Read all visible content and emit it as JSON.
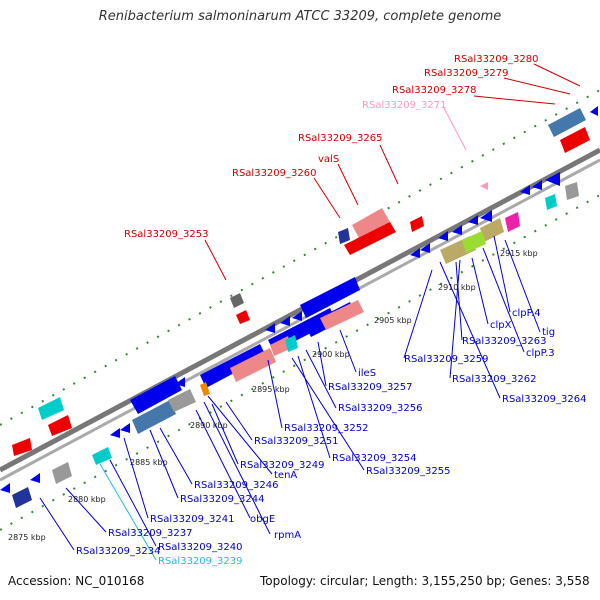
{
  "title": "Renibacterium salmoninarum ATCC 33209, complete genome",
  "footer": {
    "accession": "Accession: NC_010168",
    "summary": "Topology: circular; Length: 3,155,250 bp; Genes: 3,558"
  },
  "colors": {
    "label_red": "#cc0000",
    "label_pink": "#ff99bb",
    "label_blue": "#0000cc",
    "label_cyan": "#22bbdd",
    "feature_blue": "#0000ee",
    "feature_red": "#ee0000",
    "feature_salmon": "#ee8888",
    "feature_gray": "#999999",
    "feature_steel": "#4477aa",
    "feature_cyan": "#00cccc",
    "feature_olive": "#bbaa66",
    "feature_green": "#99dd33",
    "feature_magenta": "#ee22aa",
    "tick_green": "#338833"
  },
  "kbp_marks": [
    "2875 kbp",
    "2880 kbp",
    "2885 kbp",
    "2890 kbp",
    "2895 kbp",
    "2900 kbp",
    "2905 kbp",
    "2910 kbp",
    "2915 kbp"
  ],
  "upper_labels": [
    {
      "text": "RSal33209_3280",
      "color": "red"
    },
    {
      "text": "RSal33209_3279",
      "color": "red"
    },
    {
      "text": "RSal33209_3278",
      "color": "red"
    },
    {
      "text": "RSal33209_3271",
      "color": "pink"
    },
    {
      "text": "RSal33209_3265",
      "color": "red"
    },
    {
      "text": "valS",
      "color": "red"
    },
    {
      "text": "RSal33209_3260",
      "color": "red"
    },
    {
      "text": "RSal33209_3253",
      "color": "red"
    }
  ],
  "lower_labels": [
    {
      "text": "clpP.4",
      "color": "blue"
    },
    {
      "text": "tig",
      "color": "blue"
    },
    {
      "text": "clpX",
      "color": "blue"
    },
    {
      "text": "RSal33209_3263",
      "color": "blue"
    },
    {
      "text": "clpP.3",
      "color": "blue"
    },
    {
      "text": "RSal33209_3259",
      "color": "blue"
    },
    {
      "text": "RSal33209_3262",
      "color": "blue"
    },
    {
      "text": "RSal33209_3264",
      "color": "blue"
    },
    {
      "text": "ileS",
      "color": "blue"
    },
    {
      "text": "RSal33209_3257",
      "color": "blue"
    },
    {
      "text": "RSal33209_3256",
      "color": "blue"
    },
    {
      "text": "RSal33209_3252",
      "color": "blue"
    },
    {
      "text": "RSal33209_3251",
      "color": "blue"
    },
    {
      "text": "RSal33209_3254",
      "color": "blue"
    },
    {
      "text": "RSal33209_3249",
      "color": "blue"
    },
    {
      "text": "RSal33209_3255",
      "color": "blue"
    },
    {
      "text": "tenA",
      "color": "blue"
    },
    {
      "text": "RSal33209_3246",
      "color": "blue"
    },
    {
      "text": "RSal33209_3244",
      "color": "blue"
    },
    {
      "text": "obgE",
      "color": "blue"
    },
    {
      "text": "RSal33209_3241",
      "color": "blue"
    },
    {
      "text": "rpmA",
      "color": "blue"
    },
    {
      "text": "RSal33209_3237",
      "color": "blue"
    },
    {
      "text": "RSal33209_3240",
      "color": "blue"
    },
    {
      "text": "RSal33209_3234",
      "color": "blue"
    },
    {
      "text": "RSal33209_3239",
      "color": "cyan"
    }
  ]
}
